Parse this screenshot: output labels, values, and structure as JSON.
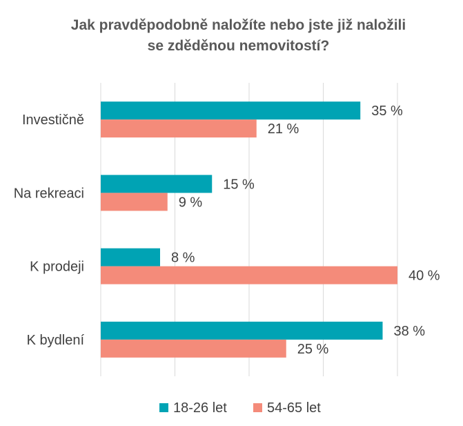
{
  "chart_data": {
    "type": "bar",
    "orientation": "horizontal",
    "title": [
      "Jak pravděpodobně naložíte nebo jste již naložili",
      "se zděděnou nemovitostí?"
    ],
    "categories": [
      "Investičně",
      "Na rekreaci",
      "K prodeji",
      "K bydlení"
    ],
    "series": [
      {
        "name": "18-26 let",
        "values": [
          35,
          15,
          8,
          38
        ],
        "labels": [
          "35 %",
          "15 %",
          "8 %",
          "38 %"
        ],
        "color": "#00A3B4"
      },
      {
        "name": "54-65 let",
        "values": [
          21,
          9,
          40,
          25
        ],
        "labels": [
          "21 %",
          "9 %",
          "40 %",
          "25 %"
        ],
        "color": "#F48B7A"
      }
    ],
    "xlim": [
      0,
      40
    ],
    "grid": true,
    "legend": "bottom"
  }
}
